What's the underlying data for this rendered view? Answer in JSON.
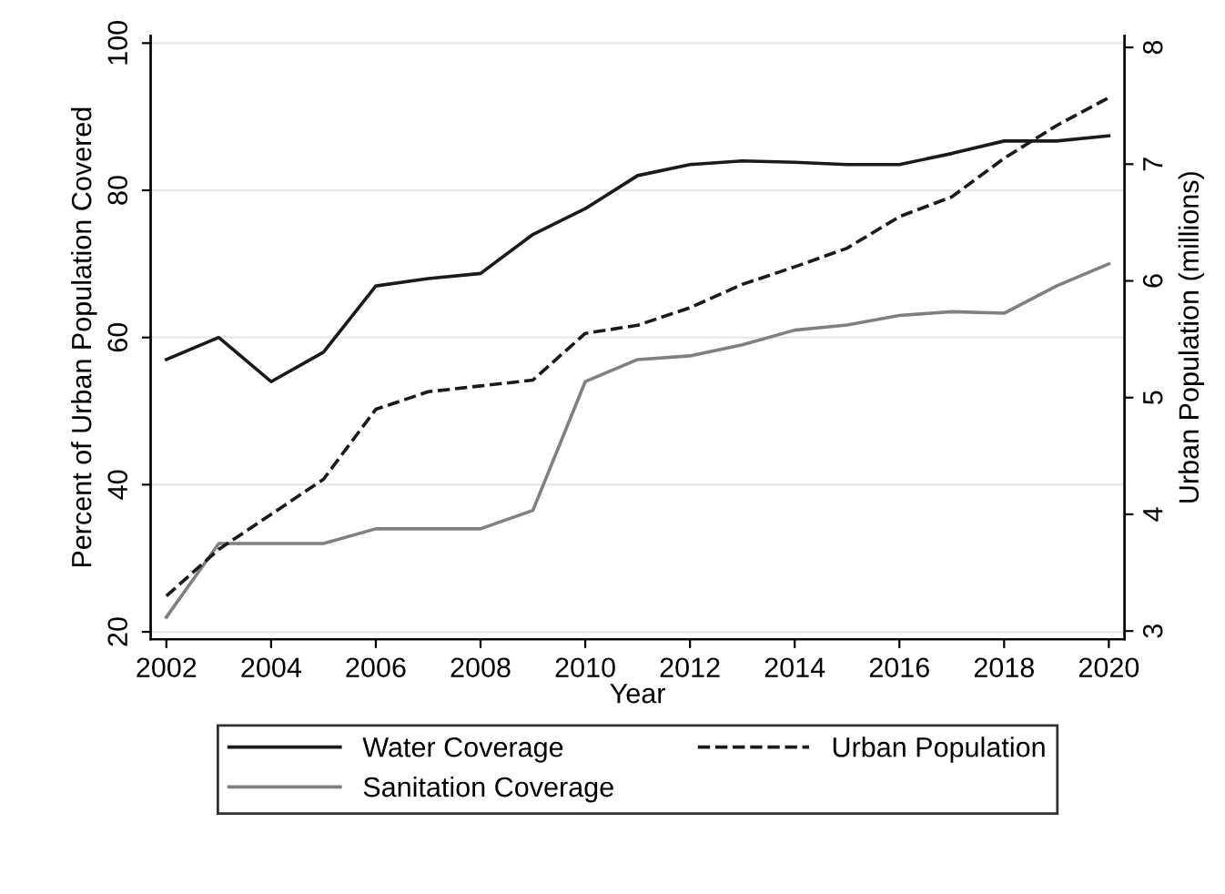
{
  "chart_data": {
    "type": "line",
    "xlabel": "Year",
    "ylabel": "Percent of Urban Population Covered",
    "y2label": "Urban Population (millions)",
    "x": [
      2002,
      2003,
      2004,
      2005,
      2006,
      2007,
      2008,
      2009,
      2010,
      2011,
      2012,
      2013,
      2014,
      2015,
      2016,
      2017,
      2018,
      2019,
      2020
    ],
    "series": [
      {
        "name": "Water Coverage",
        "color": "#1a1a1a",
        "line_style": "solid",
        "values": [
          57,
          60,
          54,
          58,
          67,
          68,
          68.7,
          74,
          77.5,
          82,
          83.5,
          84,
          83.8,
          83.5,
          83.5,
          85,
          86.7,
          86.7,
          87.4
        ]
      },
      {
        "name": "Sanitation Coverage",
        "color": "#808080",
        "line_style": "solid",
        "values": [
          22,
          32,
          32,
          32,
          34,
          34,
          34,
          36.5,
          54,
          57,
          57.5,
          59,
          61,
          61.7,
          63,
          63.5,
          63.3,
          67,
          70
        ]
      },
      {
        "name": "Urban Population",
        "color": "#1a1a1a",
        "line_style": "dashed",
        "axis": "y2",
        "values": [
          3.3,
          3.7,
          4.0,
          4.3,
          4.9,
          5.05,
          5.1,
          5.15,
          5.55,
          5.62,
          5.77,
          5.97,
          6.12,
          6.28,
          6.55,
          6.72,
          7.05,
          7.33,
          7.57
        ]
      }
    ],
    "xlim": [
      2001.7,
      2020.3
    ],
    "xticks": [
      2002,
      2004,
      2006,
      2008,
      2010,
      2012,
      2014,
      2016,
      2018,
      2020
    ],
    "ylim": [
      19,
      101
    ],
    "yticks": [
      20,
      40,
      60,
      80,
      100
    ],
    "y2lim": [
      2.93,
      8.1
    ],
    "y2ticks": [
      3,
      4,
      5,
      6,
      7,
      8
    ],
    "grid": "y",
    "legend": "bottom",
    "marker": "none"
  }
}
